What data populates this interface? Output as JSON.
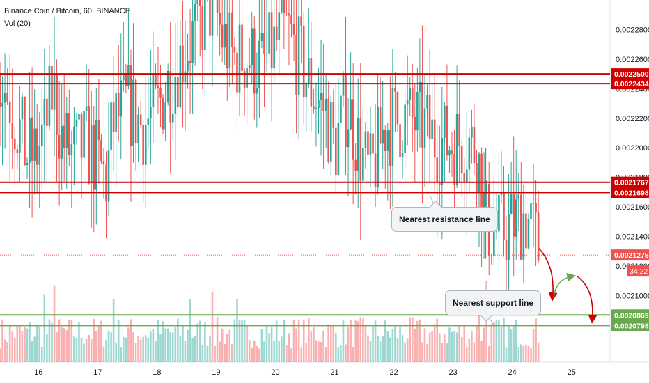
{
  "header": {
    "symbol": "Binance Coin / Bitcoin, 60, BINANCE",
    "volume_label": "Vol (20)"
  },
  "annotations": {
    "resistance_label": "Nearest resistance line",
    "support_label": "Nearest support line"
  },
  "countdown": "34:22",
  "colors": {
    "up": "#26a69a",
    "down": "#ef5350",
    "resistance": "#cc0000",
    "support": "#6aa84f",
    "projection_down": "#cc0000",
    "projection_up": "#6aa84f"
  },
  "chart_data": {
    "type": "candlestick",
    "ylim": [
      0.002055,
      0.0023
    ],
    "yticks": [
      "0.0022800",
      "0.0022600",
      "0.0022400",
      "0.0022200",
      "0.0022000",
      "0.0021800",
      "0.0021600",
      "0.0021400",
      "0.0021200",
      "0.0021000"
    ],
    "xticks": [
      "16",
      "17",
      "18",
      "19",
      "20",
      "21",
      "22",
      "23",
      "24",
      "25"
    ],
    "x_range": [
      15.35,
      25.65
    ],
    "hlines": [
      {
        "label": "0.0022500",
        "value": 0.00225,
        "kind": "resistance"
      },
      {
        "label": "0.0022434",
        "value": 0.0022434,
        "kind": "resistance"
      },
      {
        "label": "0.0021767",
        "value": 0.0021767,
        "kind": "resistance"
      },
      {
        "label": "0.0021698",
        "value": 0.0021698,
        "kind": "resistance"
      },
      {
        "label": "0.0020869",
        "value": 0.0020869,
        "kind": "support"
      },
      {
        "label": "0.0020798",
        "value": 0.0020798,
        "kind": "support"
      }
    ],
    "last_price": {
      "label": "0.0021275",
      "value": 0.0021275
    },
    "series": [
      {
        "t": 15.35,
        "close": 0.00225
      },
      {
        "t": 15.5,
        "close": 0.002235
      },
      {
        "t": 15.65,
        "close": 0.002215
      },
      {
        "t": 15.8,
        "close": 0.002195
      },
      {
        "t": 15.95,
        "close": 0.002195
      },
      {
        "t": 16.1,
        "close": 0.00221
      },
      {
        "t": 16.25,
        "close": 0.00224
      },
      {
        "t": 16.4,
        "close": 0.002205
      },
      {
        "t": 16.6,
        "close": 0.002195
      },
      {
        "t": 16.8,
        "close": 0.002202
      },
      {
        "t": 17.0,
        "close": 0.00219
      },
      {
        "t": 17.15,
        "close": 0.002178
      },
      {
        "t": 17.25,
        "close": 0.002215
      },
      {
        "t": 17.5,
        "close": 0.00223
      },
      {
        "t": 17.75,
        "close": 0.002215
      },
      {
        "t": 18.0,
        "close": 0.002225
      },
      {
        "t": 18.2,
        "close": 0.002245
      },
      {
        "t": 18.45,
        "close": 0.002265
      },
      {
        "t": 18.75,
        "close": 0.002285
      },
      {
        "t": 18.95,
        "close": 0.002298
      },
      {
        "t": 19.1,
        "close": 0.002275
      },
      {
        "t": 19.3,
        "close": 0.00226
      },
      {
        "t": 19.55,
        "close": 0.002262
      },
      {
        "t": 19.8,
        "close": 0.002255
      },
      {
        "t": 20.0,
        "close": 0.00227
      },
      {
        "t": 20.2,
        "close": 0.00228
      },
      {
        "t": 20.4,
        "close": 0.00226
      },
      {
        "t": 20.6,
        "close": 0.00224
      },
      {
        "t": 20.85,
        "close": 0.002225
      },
      {
        "t": 21.0,
        "close": 0.0022
      },
      {
        "t": 21.2,
        "close": 0.00223
      },
      {
        "t": 21.5,
        "close": 0.00219
      },
      {
        "t": 21.6,
        "close": 0.00218
      },
      {
        "t": 21.85,
        "close": 0.002215
      },
      {
        "t": 22.2,
        "close": 0.00222
      },
      {
        "t": 22.5,
        "close": 0.002215
      },
      {
        "t": 22.7,
        "close": 0.002205
      },
      {
        "t": 22.9,
        "close": 0.002203
      },
      {
        "t": 23.1,
        "close": 0.002205
      },
      {
        "t": 23.25,
        "close": 0.002204
      },
      {
        "t": 23.4,
        "close": 0.0022
      },
      {
        "t": 23.55,
        "close": 0.00215
      },
      {
        "t": 23.7,
        "close": 0.002142
      },
      {
        "t": 23.9,
        "close": 0.002145
      },
      {
        "t": 24.1,
        "close": 0.002152
      },
      {
        "t": 24.2,
        "close": 0.002155
      },
      {
        "t": 24.3,
        "close": 0.002148
      },
      {
        "t": 24.45,
        "close": 0.00213
      }
    ],
    "volume": {
      "t_range": [
        15.35,
        24.45
      ],
      "ylim": [
        0,
        1.0
      ],
      "spikes": [
        {
          "t": 16.1,
          "value": 0.75
        },
        {
          "t": 16.25,
          "value": 0.85
        },
        {
          "t": 17.25,
          "value": 0.7
        },
        {
          "t": 18.55,
          "value": 0.7
        },
        {
          "t": 18.95,
          "value": 0.78
        },
        {
          "t": 19.35,
          "value": 0.7
        },
        {
          "t": 23.55,
          "value": 0.9
        },
        {
          "t": 23.45,
          "value": 0.7
        }
      ]
    },
    "projection": {
      "down1": [
        {
          "t": 24.45,
          "y": 0.002132
        },
        {
          "t": 24.68,
          "y": 0.002099
        }
      ],
      "up": [
        {
          "t": 24.7,
          "y": 0.002099
        },
        {
          "t": 25.0,
          "y": 0.002113
        }
      ],
      "down2": [
        {
          "t": 25.1,
          "y": 0.002113
        },
        {
          "t": 25.35,
          "y": 0.002084
        }
      ]
    }
  }
}
